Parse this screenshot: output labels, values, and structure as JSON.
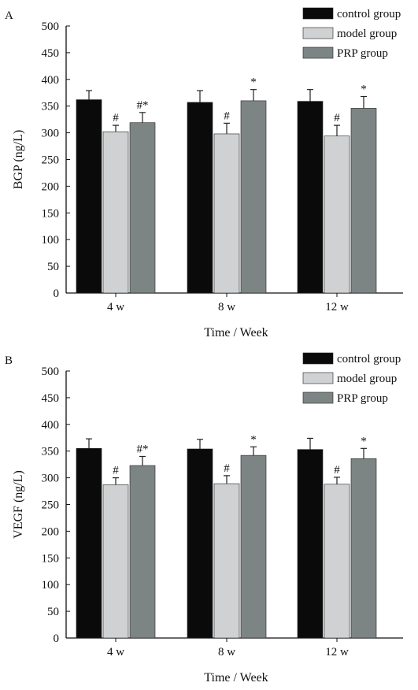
{
  "chart_data": [
    {
      "panel_label": "A",
      "type": "bar",
      "title": "",
      "xlabel": "Time / Week",
      "ylabel": "BGP (ng/L)",
      "ylim": [
        0,
        500
      ],
      "yticks": [
        0,
        50,
        100,
        150,
        200,
        250,
        300,
        350,
        400,
        450,
        500
      ],
      "categories": [
        "4 w",
        "8 w",
        "12 w"
      ],
      "series": [
        {
          "name": "control group",
          "values": [
            362,
            357,
            359
          ],
          "errors": [
            17,
            22,
            22
          ],
          "markers": [
            "",
            "",
            ""
          ]
        },
        {
          "name": "model group",
          "values": [
            302,
            298,
            294
          ],
          "errors": [
            12,
            20,
            20
          ],
          "markers": [
            "#",
            "#",
            "#"
          ]
        },
        {
          "name": "PRP group",
          "values": [
            319,
            360,
            346
          ],
          "errors": [
            19,
            21,
            22
          ],
          "markers": [
            "#*",
            "*",
            "*"
          ]
        }
      ],
      "legend_position": "top-right",
      "grid": false
    },
    {
      "panel_label": "B",
      "type": "bar",
      "title": "",
      "xlabel": "Time / Week",
      "ylabel": "VEGF (ng/L)",
      "ylim": [
        0,
        500
      ],
      "yticks": [
        0,
        50,
        100,
        150,
        200,
        250,
        300,
        350,
        400,
        450,
        500
      ],
      "categories": [
        "4 w",
        "8 w",
        "12 w"
      ],
      "series": [
        {
          "name": "control group",
          "values": [
            355,
            354,
            353
          ],
          "errors": [
            18,
            18,
            21
          ],
          "markers": [
            "",
            "",
            ""
          ]
        },
        {
          "name": "model group",
          "values": [
            287,
            289,
            288
          ],
          "errors": [
            13,
            15,
            13
          ],
          "markers": [
            "#",
            "#",
            "#"
          ]
        },
        {
          "name": "PRP group",
          "values": [
            323,
            342,
            336
          ],
          "errors": [
            17,
            16,
            19
          ],
          "markers": [
            "#*",
            "*",
            "*"
          ]
        }
      ],
      "legend_position": "top-right",
      "grid": false
    }
  ],
  "colors": {
    "control group": "#0a0a0a",
    "model group": "#cfd1d2",
    "PRP group": "#7d8584"
  }
}
